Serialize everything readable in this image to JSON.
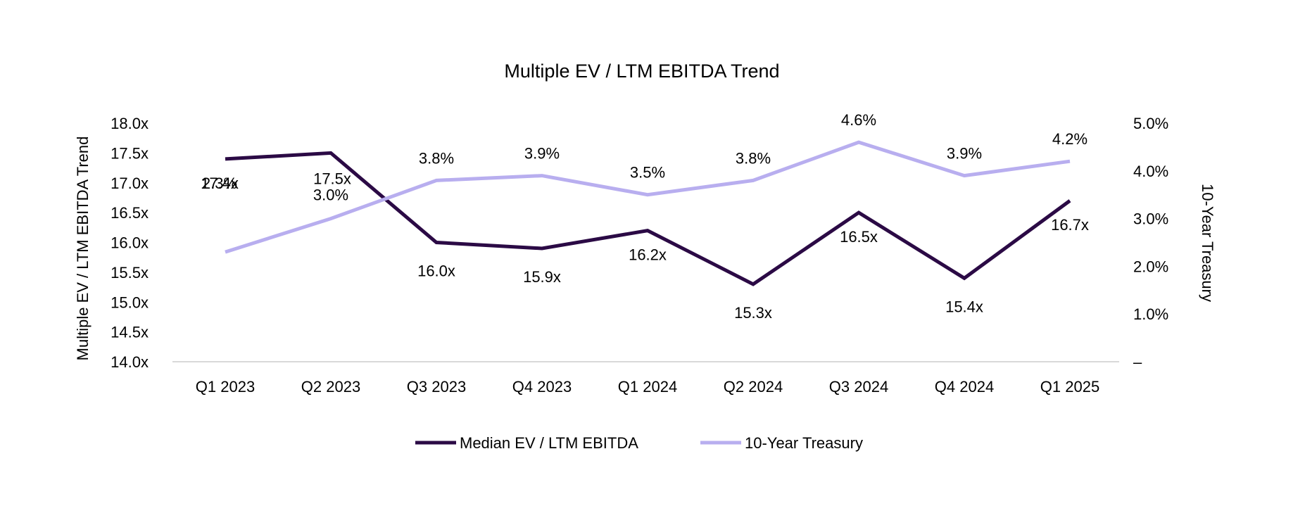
{
  "chart_data": {
    "type": "line",
    "title": "Multiple EV / LTM EBITDA Trend",
    "categories": [
      "Q1 2023",
      "Q2 2023",
      "Q3 2023",
      "Q4 2023",
      "Q1 2024",
      "Q2 2024",
      "Q3 2024",
      "Q4 2024",
      "Q1 2025"
    ],
    "y_left": {
      "label": "Multiple EV / LTM EBITDA Trend",
      "ylim": [
        14.0,
        18.0
      ],
      "ticks": [
        "14.0x",
        "14.5x",
        "15.0x",
        "15.5x",
        "16.0x",
        "16.5x",
        "17.0x",
        "17.5x",
        "18.0x"
      ]
    },
    "y_right": {
      "label": "10-Year Treasury",
      "ylim": [
        0,
        5.0
      ],
      "ticks": [
        "–",
        "1.0%",
        "2.0%",
        "3.0%",
        "4.0%",
        "5.0%"
      ]
    },
    "series": [
      {
        "name": "Median EV / LTM EBITDA",
        "axis": "left",
        "color": "#2b0a45",
        "values": [
          17.4,
          17.5,
          16.0,
          15.9,
          16.2,
          15.3,
          16.5,
          15.4,
          16.7
        ],
        "labels": [
          "17.4x",
          "17.5x",
          "16.0x",
          "15.9x",
          "16.2x",
          "15.3x",
          "16.5x",
          "15.4x",
          "16.7x"
        ]
      },
      {
        "name": "10-Year Treasury",
        "axis": "right",
        "color": "#b8aeef",
        "values": [
          2.3,
          3.0,
          3.8,
          3.9,
          3.5,
          3.8,
          4.6,
          3.9,
          4.2
        ],
        "labels": [
          "2.3%",
          "3.0%",
          "3.8%",
          "3.9%",
          "3.5%",
          "3.8%",
          "4.6%",
          "3.9%",
          "4.2%"
        ]
      }
    ],
    "legend": "bottom",
    "grid": false
  }
}
